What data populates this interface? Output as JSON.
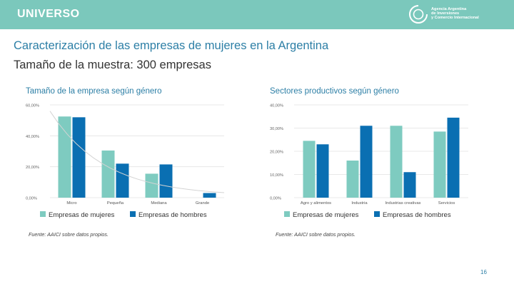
{
  "header": {
    "title": "UNIVERSO",
    "logo_lines": [
      "Agencia Argentina",
      "de Inversiones",
      "y Comercio Internacional"
    ]
  },
  "main": {
    "title": "Caracterización de las empresas de mujeres en la Argentina",
    "subtitle": "Tamaño de la muestra: 300 empresas"
  },
  "colors": {
    "header_bg": "#7bc8bc",
    "series_women": "#7ecbc0",
    "series_men": "#0a6fb2",
    "title_blue": "#2d7fa6"
  },
  "chart_data": [
    {
      "type": "bar",
      "title": "Tamaño de la empresa según género",
      "categories": [
        "Micro",
        "Pequeña",
        "Mediana",
        "Grande"
      ],
      "series": [
        {
          "name": "Empresas de mujeres",
          "values": [
            52.5,
            30.5,
            15.5,
            0
          ]
        },
        {
          "name": "Empresas de hombres",
          "values": [
            52,
            22,
            21.5,
            3
          ]
        }
      ],
      "yticks": [
        "0,00%",
        "20,00%",
        "40,00%",
        "60,00%"
      ],
      "ylim": [
        0,
        60
      ],
      "trendline": true,
      "legend": "bottom-left"
    },
    {
      "type": "bar",
      "title": "Sectores productivos según género",
      "categories": [
        "Agro y alimentos",
        "Industria",
        "Industrias creativas",
        "Servicios"
      ],
      "series": [
        {
          "name": "Empresas de mujeres",
          "values": [
            24.5,
            16,
            31,
            28.5
          ]
        },
        {
          "name": "Empresas de hombres",
          "values": [
            23,
            31,
            11,
            34.5
          ]
        }
      ],
      "yticks": [
        "0,00%",
        "10,00%",
        "20,00%",
        "30,00%",
        "40,00%"
      ],
      "ylim": [
        0,
        40
      ],
      "trendline": false,
      "legend": "bottom-left"
    }
  ],
  "footer": {
    "source_left": "Fuente: AAICI sobre datos propios.",
    "source_right": "Fuente: AAICI sobre datos propios.",
    "page_number": "16"
  }
}
